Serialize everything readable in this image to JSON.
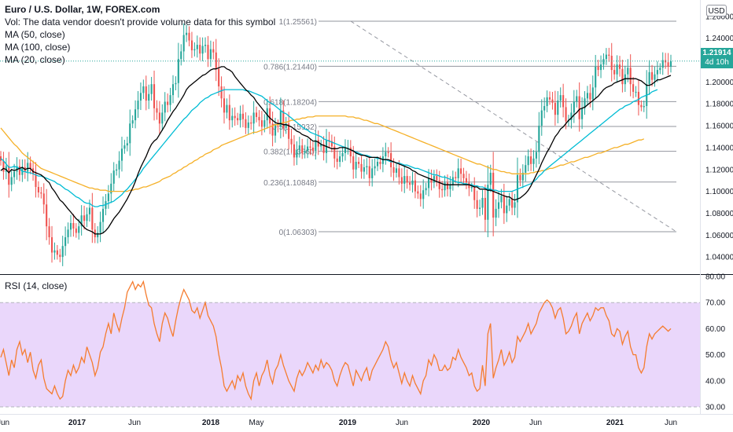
{
  "legend": {
    "title": "Euro / U.S. Dollar, 1W, FOREX.com",
    "volume_note": "Vol: The data vendor doesn't provide volume data for this symbol",
    "ma50": "MA (50, close)",
    "ma100": "MA (100, close)",
    "ma20": "MA (20, close)"
  },
  "rsi_label": "RSI (14, close)",
  "currency_badge": "USD",
  "last_price": {
    "value": "1.21914",
    "countdown": "4d 10h"
  },
  "colors": {
    "up": "#26a69a",
    "down": "#ef5350",
    "ma20": "#000000",
    "ma50": "#00bcd4",
    "ma100": "#f5b027",
    "rsi": "#f57c2f",
    "rsi_band": "#ead7fb",
    "fib": "#787b86",
    "last_price_line": "#26a69a"
  },
  "chart_data": [
    {
      "type": "candlestick",
      "symbol": "EUR/USD",
      "timeframe": "1W",
      "ylim": [
        1.025,
        1.275
      ],
      "y_ticks": [
        "1.26000",
        "1.24000",
        "1.22000",
        "1.20000",
        "1.18000",
        "1.16000",
        "1.14000",
        "1.12000",
        "1.10000",
        "1.08000",
        "1.06000",
        "1.04000"
      ],
      "x_ticks": [
        "Jun",
        "2017",
        "Jun",
        "2018",
        "May",
        "2019",
        "Jun",
        "2020",
        "Jun",
        "2021",
        "Jun"
      ],
      "closes": [
        1.128,
        1.118,
        1.123,
        1.106,
        1.113,
        1.118,
        1.123,
        1.115,
        1.122,
        1.118,
        1.126,
        1.121,
        1.116,
        1.104,
        1.099,
        1.098,
        1.088,
        1.068,
        1.058,
        1.044,
        1.046,
        1.042,
        1.04,
        1.05,
        1.058,
        1.065,
        1.071,
        1.066,
        1.062,
        1.068,
        1.078,
        1.073,
        1.079,
        1.085,
        1.065,
        1.058,
        1.062,
        1.072,
        1.084,
        1.091,
        1.098,
        1.107,
        1.119,
        1.12,
        1.128,
        1.139,
        1.142,
        1.144,
        1.162,
        1.165,
        1.175,
        1.183,
        1.19,
        1.196,
        1.183,
        1.189,
        1.198,
        1.176,
        1.172,
        1.162,
        1.172,
        1.182,
        1.179,
        1.188,
        1.198,
        1.199,
        1.221,
        1.228,
        1.243,
        1.245,
        1.238,
        1.229,
        1.23,
        1.234,
        1.226,
        1.233,
        1.234,
        1.221,
        1.23,
        1.227,
        1.212,
        1.196,
        1.185,
        1.172,
        1.179,
        1.165,
        1.169,
        1.167,
        1.165,
        1.171,
        1.166,
        1.158,
        1.163,
        1.162,
        1.172,
        1.168,
        1.165,
        1.159,
        1.165,
        1.176,
        1.162,
        1.151,
        1.16,
        1.159,
        1.174,
        1.158,
        1.162,
        1.148,
        1.143,
        1.131,
        1.138,
        1.142,
        1.135,
        1.137,
        1.141,
        1.14,
        1.137,
        1.147,
        1.141,
        1.143,
        1.135,
        1.147,
        1.146,
        1.141,
        1.13,
        1.127,
        1.132,
        1.135,
        1.14,
        1.14,
        1.132,
        1.12,
        1.127,
        1.125,
        1.118,
        1.122,
        1.123,
        1.112,
        1.121,
        1.123,
        1.127,
        1.125,
        1.132,
        1.136,
        1.135,
        1.122,
        1.117,
        1.121,
        1.113,
        1.107,
        1.114,
        1.108,
        1.106,
        1.11,
        1.1,
        1.098,
        1.093,
        1.101,
        1.103,
        1.112,
        1.108,
        1.114,
        1.11,
        1.102,
        1.101,
        1.108,
        1.102,
        1.106,
        1.113,
        1.112,
        1.121,
        1.116,
        1.112,
        1.108,
        1.103,
        1.104,
        1.092,
        1.084,
        1.085,
        1.094,
        1.074,
        1.106,
        1.117,
        1.076,
        1.084,
        1.09,
        1.096,
        1.08,
        1.087,
        1.093,
        1.085,
        1.09,
        1.115,
        1.11,
        1.117,
        1.124,
        1.132,
        1.125,
        1.13,
        1.136,
        1.16,
        1.174,
        1.178,
        1.186,
        1.184,
        1.181,
        1.17,
        1.183,
        1.188,
        1.177,
        1.164,
        1.165,
        1.172,
        1.182,
        1.187,
        1.166,
        1.176,
        1.185,
        1.19,
        1.184,
        1.195,
        1.214,
        1.211,
        1.216,
        1.221,
        1.225,
        1.224,
        1.211,
        1.207,
        1.216,
        1.212,
        1.198,
        1.207,
        1.213,
        1.198,
        1.191,
        1.191,
        1.179,
        1.177,
        1.178,
        1.198,
        1.209,
        1.202,
        1.207,
        1.211,
        1.213,
        1.22,
        1.218,
        1.214,
        1.219
      ],
      "ma20": [
        1.119,
        1.121,
        1.12,
        1.117,
        1.12,
        1.119,
        1.12,
        1.121,
        1.122,
        1.12,
        1.121,
        1.121,
        1.118,
        1.117,
        1.116,
        1.115,
        1.113,
        1.11,
        1.108,
        1.103,
        1.1,
        1.096,
        1.092,
        1.09,
        1.087,
        1.084,
        1.081,
        1.078,
        1.075,
        1.073,
        1.07,
        1.067,
        1.065,
        1.064,
        1.063,
        1.061,
        1.061,
        1.061,
        1.062,
        1.064,
        1.067,
        1.071,
        1.075,
        1.078,
        1.081,
        1.085,
        1.089,
        1.093,
        1.098,
        1.103,
        1.109,
        1.116,
        1.122,
        1.127,
        1.132,
        1.138,
        1.143,
        1.146,
        1.148,
        1.152,
        1.156,
        1.16,
        1.165,
        1.169,
        1.173,
        1.176,
        1.18,
        1.184,
        1.188,
        1.193,
        1.196,
        1.198,
        1.2,
        1.202,
        1.204,
        1.206,
        1.207,
        1.209,
        1.211,
        1.212,
        1.212,
        1.213,
        1.214,
        1.214,
        1.212,
        1.211,
        1.209,
        1.205,
        1.202,
        1.199,
        1.196,
        1.193,
        1.191,
        1.188,
        1.186,
        1.182,
        1.179,
        1.176,
        1.173,
        1.17,
        1.167,
        1.165,
        1.163,
        1.162,
        1.162,
        1.161,
        1.161,
        1.16,
        1.159,
        1.157,
        1.155,
        1.154,
        1.152,
        1.151,
        1.15,
        1.148,
        1.146,
        1.146,
        1.145,
        1.143,
        1.142,
        1.141,
        1.14,
        1.139,
        1.139,
        1.139,
        1.14,
        1.14,
        1.14,
        1.139,
        1.138,
        1.137,
        1.135,
        1.134,
        1.133,
        1.133,
        1.132,
        1.131,
        1.131,
        1.131,
        1.131,
        1.13,
        1.129,
        1.129,
        1.129,
        1.128,
        1.127,
        1.126,
        1.125,
        1.124,
        1.123,
        1.122,
        1.121,
        1.119,
        1.118,
        1.116,
        1.115,
        1.114,
        1.113,
        1.112,
        1.111,
        1.11,
        1.109,
        1.108,
        1.107,
        1.106,
        1.106,
        1.106,
        1.106,
        1.106,
        1.106,
        1.106,
        1.106,
        1.106,
        1.106,
        1.105,
        1.104,
        1.104,
        1.102,
        1.102,
        1.102,
        1.101,
        1.101,
        1.1,
        1.099,
        1.098,
        1.097,
        1.096,
        1.095,
        1.095,
        1.093,
        1.092,
        1.093,
        1.094,
        1.096,
        1.098,
        1.101,
        1.105,
        1.11,
        1.115,
        1.12,
        1.126,
        1.131,
        1.136,
        1.14,
        1.145,
        1.15,
        1.153,
        1.157,
        1.159,
        1.162,
        1.165,
        1.167,
        1.17,
        1.172,
        1.175,
        1.176,
        1.177,
        1.179,
        1.181,
        1.183,
        1.185,
        1.187,
        1.19,
        1.193,
        1.195,
        1.196,
        1.197,
        1.199,
        1.2,
        1.201,
        1.202,
        1.203,
        1.203,
        1.203,
        1.203,
        1.203,
        1.202,
        1.201,
        1.199,
        1.197,
        1.197,
        1.198,
        1.2,
        1.202,
        1.202,
        1.203,
        1.204,
        1.205,
        1.206
      ],
      "ma50": [
        1.13,
        1.128,
        1.125,
        1.122,
        1.122,
        1.123,
        1.122,
        1.121,
        1.118,
        1.118,
        1.117,
        1.117,
        1.116,
        1.115,
        1.114,
        1.114,
        1.113,
        1.112,
        1.111,
        1.11,
        1.109,
        1.107,
        1.106,
        1.104,
        1.102,
        1.101,
        1.099,
        1.097,
        1.095,
        1.094,
        1.092,
        1.09,
        1.089,
        1.089,
        1.087,
        1.086,
        1.086,
        1.087,
        1.087,
        1.088,
        1.089,
        1.09,
        1.091,
        1.093,
        1.095,
        1.097,
        1.1,
        1.102,
        1.105,
        1.108,
        1.111,
        1.114,
        1.117,
        1.121,
        1.124,
        1.127,
        1.13,
        1.133,
        1.136,
        1.139,
        1.142,
        1.145,
        1.148,
        1.151,
        1.154,
        1.157,
        1.16,
        1.163,
        1.166,
        1.168,
        1.171,
        1.174,
        1.176,
        1.178,
        1.181,
        1.183,
        1.185,
        1.186,
        1.188,
        1.189,
        1.19,
        1.191,
        1.192,
        1.193,
        1.193,
        1.193,
        1.193,
        1.193,
        1.193,
        1.193,
        1.193,
        1.192,
        1.192,
        1.191,
        1.19,
        1.189,
        1.188,
        1.187,
        1.185,
        1.183,
        1.181,
        1.18,
        1.178,
        1.176,
        1.174,
        1.172,
        1.171,
        1.169,
        1.167,
        1.165,
        1.163,
        1.161,
        1.159,
        1.157,
        1.156,
        1.154,
        1.153,
        1.152,
        1.151,
        1.15,
        1.148,
        1.147,
        1.146,
        1.145,
        1.144,
        1.143,
        1.142,
        1.141,
        1.14,
        1.139,
        1.138,
        1.137,
        1.136,
        1.135,
        1.134,
        1.133,
        1.133,
        1.132,
        1.131,
        1.131,
        1.13,
        1.13,
        1.129,
        1.129,
        1.128,
        1.127,
        1.127,
        1.126,
        1.126,
        1.125,
        1.124,
        1.124,
        1.123,
        1.122,
        1.121,
        1.121,
        1.12,
        1.119,
        1.118,
        1.117,
        1.116,
        1.115,
        1.115,
        1.114,
        1.113,
        1.113,
        1.112,
        1.111,
        1.11,
        1.109,
        1.108,
        1.108,
        1.107,
        1.107,
        1.106,
        1.106,
        1.105,
        1.105,
        1.104,
        1.104,
        1.103,
        1.102,
        1.102,
        1.101,
        1.101,
        1.1,
        1.1,
        1.1,
        1.1,
        1.1,
        1.1,
        1.101,
        1.102,
        1.103,
        1.104,
        1.105,
        1.106,
        1.107,
        1.109,
        1.111,
        1.114,
        1.116,
        1.119,
        1.121,
        1.123,
        1.125,
        1.127,
        1.129,
        1.131,
        1.133,
        1.135,
        1.137,
        1.139,
        1.141,
        1.143,
        1.145,
        1.147,
        1.149,
        1.151,
        1.153,
        1.155,
        1.157,
        1.159,
        1.161,
        1.163,
        1.165,
        1.167,
        1.169,
        1.171,
        1.173,
        1.175,
        1.176,
        1.178,
        1.179,
        1.18,
        1.182,
        1.183,
        1.184,
        1.186,
        1.187,
        1.188,
        1.189,
        1.191,
        1.192,
        1.193
      ],
      "ma100": [
        1.158,
        1.155,
        1.152,
        1.149,
        1.146,
        1.143,
        1.141,
        1.138,
        1.135,
        1.133,
        1.131,
        1.129,
        1.127,
        1.125,
        1.123,
        1.121,
        1.12,
        1.119,
        1.118,
        1.117,
        1.116,
        1.115,
        1.114,
        1.113,
        1.112,
        1.111,
        1.11,
        1.109,
        1.108,
        1.107,
        1.106,
        1.105,
        1.104,
        1.103,
        1.103,
        1.102,
        1.102,
        1.101,
        1.101,
        1.101,
        1.1,
        1.1,
        1.1,
        1.1,
        1.1,
        1.1,
        1.1,
        1.1,
        1.101,
        1.101,
        1.102,
        1.102,
        1.103,
        1.104,
        1.104,
        1.105,
        1.106,
        1.107,
        1.108,
        1.109,
        1.111,
        1.112,
        1.113,
        1.114,
        1.116,
        1.117,
        1.119,
        1.12,
        1.122,
        1.123,
        1.125,
        1.126,
        1.128,
        1.129,
        1.131,
        1.132,
        1.134,
        1.135,
        1.136,
        1.138,
        1.139,
        1.14,
        1.142,
        1.143,
        1.144,
        1.145,
        1.146,
        1.147,
        1.148,
        1.149,
        1.15,
        1.151,
        1.152,
        1.153,
        1.154,
        1.154,
        1.155,
        1.156,
        1.157,
        1.158,
        1.159,
        1.16,
        1.161,
        1.161,
        1.162,
        1.163,
        1.163,
        1.164,
        1.165,
        1.165,
        1.166,
        1.166,
        1.167,
        1.167,
        1.168,
        1.168,
        1.168,
        1.169,
        1.169,
        1.169,
        1.169,
        1.169,
        1.169,
        1.169,
        1.169,
        1.169,
        1.169,
        1.169,
        1.169,
        1.168,
        1.168,
        1.168,
        1.167,
        1.167,
        1.166,
        1.165,
        1.165,
        1.164,
        1.163,
        1.162,
        1.162,
        1.161,
        1.16,
        1.159,
        1.158,
        1.157,
        1.156,
        1.155,
        1.154,
        1.153,
        1.152,
        1.151,
        1.15,
        1.149,
        1.148,
        1.147,
        1.146,
        1.145,
        1.144,
        1.143,
        1.142,
        1.141,
        1.14,
        1.139,
        1.138,
        1.137,
        1.136,
        1.135,
        1.134,
        1.133,
        1.132,
        1.131,
        1.13,
        1.129,
        1.128,
        1.127,
        1.126,
        1.125,
        1.125,
        1.124,
        1.123,
        1.122,
        1.121,
        1.12,
        1.12,
        1.119,
        1.118,
        1.118,
        1.117,
        1.117,
        1.116,
        1.116,
        1.116,
        1.116,
        1.116,
        1.116,
        1.116,
        1.117,
        1.117,
        1.118,
        1.118,
        1.119,
        1.119,
        1.12,
        1.121,
        1.121,
        1.122,
        1.123,
        1.124,
        1.124,
        1.125,
        1.126,
        1.127,
        1.127,
        1.128,
        1.129,
        1.13,
        1.131,
        1.131,
        1.132,
        1.133,
        1.134,
        1.135,
        1.135,
        1.136,
        1.137,
        1.138,
        1.139,
        1.14,
        1.14,
        1.141,
        1.142,
        1.143,
        1.143,
        1.144,
        1.145,
        1.146,
        1.147,
        1.147,
        1.148
      ]
    },
    {
      "type": "line",
      "name": "RSI (14, close)",
      "ylim": [
        30,
        80
      ],
      "y_ticks": [
        "80.00",
        "70.00",
        "60.00",
        "50.00",
        "40.00",
        "30.00"
      ],
      "band": [
        30,
        70
      ],
      "values": [
        49,
        52,
        47,
        42,
        48,
        45,
        52,
        55,
        50,
        52,
        47,
        51,
        44,
        41,
        46,
        48,
        41,
        37,
        36,
        35,
        38,
        35,
        33,
        34,
        40,
        44,
        42,
        46,
        43,
        45,
        49,
        47,
        53,
        50,
        47,
        42,
        45,
        51,
        53,
        58,
        62,
        58,
        66,
        62,
        59,
        64,
        68,
        74,
        76,
        78,
        75,
        77,
        76,
        78,
        73,
        69,
        68,
        62,
        58,
        55,
        62,
        66,
        64,
        60,
        57,
        63,
        68,
        72,
        75,
        73,
        71,
        67,
        66,
        68,
        64,
        67,
        70,
        65,
        63,
        61,
        57,
        50,
        45,
        38,
        36,
        38,
        40,
        37,
        42,
        40,
        43,
        38,
        35,
        33,
        40,
        43,
        38,
        42,
        44,
        48,
        42,
        39,
        44,
        46,
        50,
        46,
        43,
        40,
        38,
        36,
        41,
        44,
        42,
        44,
        47,
        45,
        43,
        46,
        44,
        48,
        45,
        47,
        46,
        44,
        40,
        38,
        42,
        45,
        47,
        46,
        42,
        38,
        44,
        42,
        40,
        43,
        45,
        40,
        44,
        46,
        48,
        50,
        52,
        55,
        53,
        48,
        45,
        47,
        43,
        39,
        43,
        40,
        38,
        42,
        39,
        37,
        35,
        40,
        42,
        48,
        46,
        50,
        48,
        44,
        44,
        46,
        44,
        45,
        49,
        48,
        52,
        49,
        47,
        45,
        42,
        43,
        38,
        36,
        37,
        46,
        38,
        58,
        62,
        41,
        45,
        48,
        52,
        46,
        48,
        51,
        47,
        49,
        57,
        55,
        57,
        59,
        62,
        58,
        60,
        62,
        66,
        68,
        70,
        71,
        70,
        68,
        64,
        67,
        68,
        64,
        58,
        59,
        61,
        64,
        66,
        58,
        62,
        64,
        66,
        63,
        65,
        68,
        67,
        68,
        68,
        65,
        63,
        58,
        57,
        60,
        59,
        54,
        57,
        59,
        53,
        50,
        50,
        45,
        43,
        45,
        53,
        58,
        56,
        58,
        59,
        60,
        61,
        60,
        59,
        60
      ]
    }
  ],
  "fib_levels": [
    {
      "label": "1(1.25561)",
      "value": 1.25561
    },
    {
      "label": "0.786(1.21440)",
      "value": 1.2144
    },
    {
      "label": "0.618(1.18204)",
      "value": 1.18204
    },
    {
      "label": "0.5(1.15932)",
      "value": 1.15932
    },
    {
      "label": "0.382(1.13660)",
      "value": 1.1366
    },
    {
      "label": "0.236(1.10848)",
      "value": 1.10848
    },
    {
      "label": "0(1.06303)",
      "value": 1.06303
    }
  ]
}
